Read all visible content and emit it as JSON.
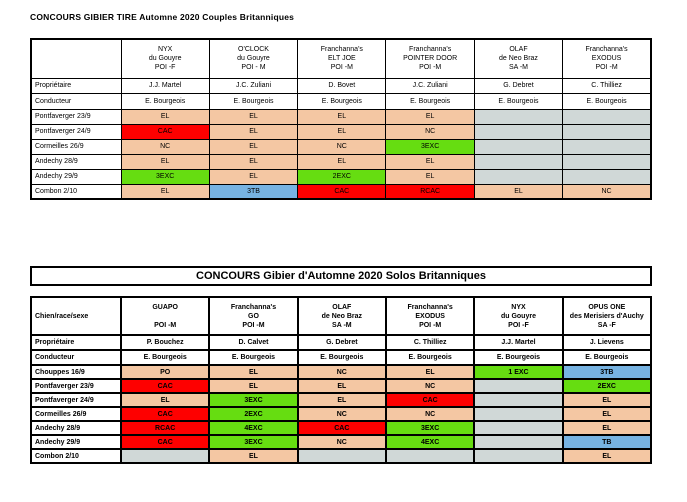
{
  "colors": {
    "salmon": "#F4C7A3",
    "red": "#FE0000",
    "green": "#66DD11",
    "blue": "#77B3E2",
    "gray": "#D0D8D7",
    "white": "#FFFFFF"
  },
  "table1": {
    "title": "CONCOURS GIBIER TIRE Automne 2020 Couples Britanniques",
    "corner_label": "",
    "row_labels": {
      "owner": "Propriétaire",
      "handler": "Conducteur"
    },
    "dogs": [
      {
        "name_lines": [
          "NYX",
          "du Gouyre",
          "POI -F"
        ],
        "owner": "J.J. Martel",
        "handler": "E. Bourgeois"
      },
      {
        "name_lines": [
          "O'CLOCK",
          "du  Gouyre",
          "POI - M"
        ],
        "owner": "J.C. Zuliani",
        "handler": "E. Bourgeois"
      },
      {
        "name_lines": [
          "Franchanna's",
          "ELT JOE",
          "POI -M"
        ],
        "owner": "D. Bovet",
        "handler": "E. Bourgeois"
      },
      {
        "name_lines": [
          "Franchanna's",
          "POINTER DOOR",
          "POI -M"
        ],
        "owner": "J.C. Zuliani",
        "handler": "E. Bourgeois"
      },
      {
        "name_lines": [
          "OLAF",
          "de Neo Braz",
          "SA -M"
        ],
        "owner": "G. Debret",
        "handler": "E. Bourgeois"
      },
      {
        "name_lines": [
          "Franchanna's",
          "EXODUS",
          "POI -M"
        ],
        "owner": "C. Thilliez",
        "handler": "E. Bourgeois"
      }
    ],
    "events": [
      {
        "label": "Pontfaverger 23/9",
        "results": [
          {
            "t": "EL",
            "c": "salmon"
          },
          {
            "t": "EL",
            "c": "salmon"
          },
          {
            "t": "EL",
            "c": "salmon"
          },
          {
            "t": "EL",
            "c": "salmon"
          },
          {
            "t": "",
            "c": "gray"
          },
          {
            "t": "",
            "c": "gray"
          }
        ]
      },
      {
        "label": "Pontfaverger 24/9",
        "results": [
          {
            "t": "CAC",
            "c": "red"
          },
          {
            "t": "EL",
            "c": "salmon"
          },
          {
            "t": "EL",
            "c": "salmon"
          },
          {
            "t": "NC",
            "c": "salmon"
          },
          {
            "t": "",
            "c": "gray"
          },
          {
            "t": "",
            "c": "gray"
          }
        ]
      },
      {
        "label": "Cormeilles 26/9",
        "results": [
          {
            "t": "NC",
            "c": "salmon"
          },
          {
            "t": "EL",
            "c": "salmon"
          },
          {
            "t": "NC",
            "c": "salmon"
          },
          {
            "t": "3EXC",
            "c": "green"
          },
          {
            "t": "",
            "c": "gray"
          },
          {
            "t": "",
            "c": "gray"
          }
        ]
      },
      {
        "label": "Andechy 28/9",
        "results": [
          {
            "t": "EL",
            "c": "salmon"
          },
          {
            "t": "EL",
            "c": "salmon"
          },
          {
            "t": "EL",
            "c": "salmon"
          },
          {
            "t": "EL",
            "c": "salmon"
          },
          {
            "t": "",
            "c": "gray"
          },
          {
            "t": "",
            "c": "gray"
          }
        ]
      },
      {
        "label": "Andechy 29/9",
        "results": [
          {
            "t": "3EXC",
            "c": "green"
          },
          {
            "t": "EL",
            "c": "salmon"
          },
          {
            "t": "2EXC",
            "c": "green"
          },
          {
            "t": "EL",
            "c": "salmon"
          },
          {
            "t": "",
            "c": "gray"
          },
          {
            "t": "",
            "c": "gray"
          }
        ]
      },
      {
        "label": "Combon 2/10",
        "results": [
          {
            "t": "EL",
            "c": "salmon"
          },
          {
            "t": "3TB",
            "c": "blue"
          },
          {
            "t": "CAC",
            "c": "red"
          },
          {
            "t": "RCAC",
            "c": "red"
          },
          {
            "t": "EL",
            "c": "salmon"
          },
          {
            "t": "NC",
            "c": "salmon"
          }
        ]
      }
    ]
  },
  "table2": {
    "title": "CONCOURS Gibier d'Automne 2020 Solos Britanniques",
    "corner_label": "Chien/race/sexe",
    "row_labels": {
      "owner": "Propriétaire",
      "handler": "Conducteur"
    },
    "dogs": [
      {
        "name_lines": [
          "GUAPO",
          "",
          "POI -M"
        ],
        "owner": "P. Bouchez",
        "handler": "E. Bourgeois"
      },
      {
        "name_lines": [
          "Franchanna's",
          "GO",
          "POI -M"
        ],
        "owner": "D. Calvet",
        "handler": "E. Bourgeois"
      },
      {
        "name_lines": [
          "OLAF",
          "de Neo Braz",
          "SA -M"
        ],
        "owner": "G. Debret",
        "handler": "E. Bourgeois"
      },
      {
        "name_lines": [
          "Franchanna's",
          "EXODUS",
          "POI -M"
        ],
        "owner": "C. Thilliez",
        "handler": "E. Bourgeois"
      },
      {
        "name_lines": [
          "NYX",
          "du Gouyre",
          "POI -F"
        ],
        "owner": "J.J. Martel",
        "handler": "E. Bourgeois"
      },
      {
        "name_lines": [
          "OPUS ONE",
          "des Merisiers d'Auchy",
          "SA -F"
        ],
        "owner": "J. Lievens",
        "handler": "E. Bourgeois"
      }
    ],
    "events": [
      {
        "label": "Chouppes 16/9",
        "results": [
          {
            "t": "PO",
            "c": "salmon"
          },
          {
            "t": "EL",
            "c": "salmon"
          },
          {
            "t": "NC",
            "c": "salmon"
          },
          {
            "t": "EL",
            "c": "salmon"
          },
          {
            "t": "1 EXC",
            "c": "green"
          },
          {
            "t": "3TB",
            "c": "blue"
          }
        ]
      },
      {
        "label": "Pontfaverger 23/9",
        "results": [
          {
            "t": "CAC",
            "c": "red"
          },
          {
            "t": "EL",
            "c": "salmon"
          },
          {
            "t": "EL",
            "c": "salmon"
          },
          {
            "t": "NC",
            "c": "salmon"
          },
          {
            "t": "",
            "c": "gray"
          },
          {
            "t": "2EXC",
            "c": "green"
          }
        ]
      },
      {
        "label": "Pontfaverger 24/9",
        "results": [
          {
            "t": "EL",
            "c": "salmon"
          },
          {
            "t": "3EXC",
            "c": "green"
          },
          {
            "t": "EL",
            "c": "salmon"
          },
          {
            "t": "CAC",
            "c": "red"
          },
          {
            "t": "",
            "c": "gray"
          },
          {
            "t": "EL",
            "c": "salmon"
          }
        ]
      },
      {
        "label": "Cormeilles 26/9",
        "results": [
          {
            "t": "CAC",
            "c": "red"
          },
          {
            "t": "2EXC",
            "c": "green"
          },
          {
            "t": "NC",
            "c": "salmon"
          },
          {
            "t": "NC",
            "c": "salmon"
          },
          {
            "t": "",
            "c": "gray"
          },
          {
            "t": "EL",
            "c": "salmon"
          }
        ]
      },
      {
        "label": "Andechy 28/9",
        "results": [
          {
            "t": "RCAC",
            "c": "red"
          },
          {
            "t": "4EXC",
            "c": "green"
          },
          {
            "t": "CAC",
            "c": "red"
          },
          {
            "t": "3EXC",
            "c": "green"
          },
          {
            "t": "",
            "c": "gray"
          },
          {
            "t": "EL",
            "c": "salmon"
          }
        ]
      },
      {
        "label": "Andechy 29/9",
        "results": [
          {
            "t": "CAC",
            "c": "red"
          },
          {
            "t": "3EXC",
            "c": "green"
          },
          {
            "t": "NC",
            "c": "salmon"
          },
          {
            "t": "4EXC",
            "c": "green"
          },
          {
            "t": "",
            "c": "gray"
          },
          {
            "t": "TB",
            "c": "blue"
          }
        ]
      },
      {
        "label": "Combon 2/10",
        "results": [
          {
            "t": "",
            "c": "gray"
          },
          {
            "t": "EL",
            "c": "salmon"
          },
          {
            "t": "",
            "c": "gray"
          },
          {
            "t": "",
            "c": "gray"
          },
          {
            "t": "",
            "c": "gray"
          },
          {
            "t": "EL",
            "c": "salmon"
          }
        ]
      }
    ]
  }
}
